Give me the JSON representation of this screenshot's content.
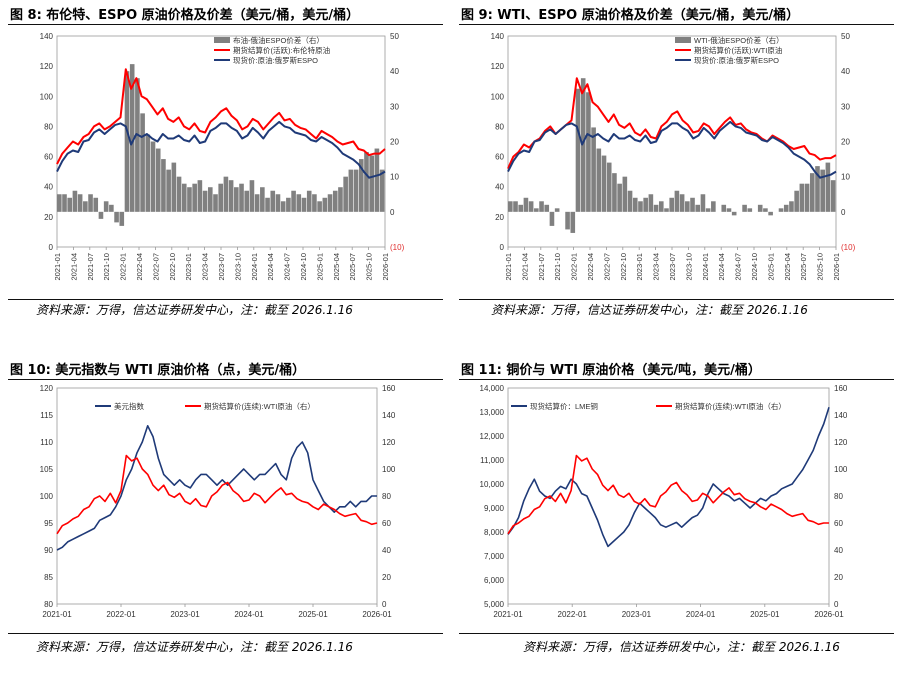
{
  "panels": [
    {
      "title": "图 8:  布伦特、ESPO 原油价格及价差（美元/桶，美元/桶）",
      "source": "资料来源：万得，信达证券研发中心，注：截至 2026.1.16"
    },
    {
      "title": "图 9:  WTI、ESPO 原油价格及价差（美元/桶，美元/桶）",
      "source": "资料来源：万得，信达证券研发中心，注：截至 2026.1.16"
    },
    {
      "title": "图 10:  美元指数与 WTI 原油价格（点，美元/桶）",
      "source": "资料来源：万得，信达证券研发中心，注：截至 2026.1.16"
    },
    {
      "title": "图 11:  铜价与 WTI 原油价格（美元/吨，美元/桶）",
      "source": "资料来源：万得，信达证券研发中心，注：截至 2026.1.16"
    }
  ],
  "colors": {
    "red": "#ff0000",
    "navy": "#1f3a78",
    "gray": "#808080"
  },
  "chart_data": [
    {
      "type": "line",
      "left_axis": {
        "ticks": [
          "0",
          "20",
          "40",
          "60",
          "80",
          "100",
          "120",
          "140"
        ],
        "ylim": [
          0,
          140
        ]
      },
      "right_axis": {
        "ticks": [
          "(10)",
          "0",
          "10",
          "20",
          "30",
          "40",
          "50"
        ],
        "ylim": [
          -10,
          50
        ]
      },
      "x_ticks": [
        "2021-01",
        "2021-04",
        "2021-07",
        "2021-10",
        "2022-01",
        "2022-04",
        "2022-07",
        "2022-10",
        "2023-01",
        "2023-04",
        "2023-07",
        "2023-10",
        "2024-01",
        "2024-04",
        "2024-07",
        "2024-10",
        "2025-01",
        "2025-04",
        "2025-07",
        "2025-10",
        "2026-01"
      ],
      "legend_placement": "top-right",
      "series": [
        {
          "name": "布油-俄油ESPO价差（右）",
          "kind": "bar",
          "axis": "right",
          "values": [
            5,
            5,
            4,
            6,
            5,
            3,
            5,
            4,
            -2,
            3,
            2,
            -3,
            -4,
            40,
            42,
            38,
            28,
            22,
            20,
            18,
            15,
            12,
            14,
            10,
            8,
            7,
            8,
            9,
            6,
            7,
            5,
            8,
            10,
            9,
            7,
            8,
            6,
            9,
            5,
            7,
            4,
            6,
            5,
            3,
            4,
            6,
            5,
            4,
            6,
            5,
            3,
            4,
            5,
            6,
            7,
            10,
            12,
            12,
            15,
            17,
            16,
            18,
            12
          ]
        },
        {
          "name": "期货结算价(活跃):布伦特原油",
          "kind": "line",
          "axis": "left",
          "values": [
            55,
            62,
            66,
            70,
            68,
            73,
            75,
            80,
            82,
            78,
            80,
            83,
            86,
            118,
            105,
            112,
            100,
            98,
            93,
            88,
            92,
            85,
            83,
            86,
            80,
            78,
            82,
            77,
            76,
            83,
            86,
            90,
            92,
            87,
            84,
            78,
            80,
            85,
            83,
            78,
            82,
            86,
            89,
            84,
            85,
            81,
            79,
            78,
            75,
            72,
            77,
            75,
            73,
            70,
            68,
            69,
            70,
            65,
            64,
            61,
            62,
            62,
            65
          ]
        },
        {
          "name": "现货价:原油:俄罗斯ESPO",
          "kind": "line",
          "axis": "left",
          "values": [
            50,
            57,
            62,
            64,
            63,
            70,
            71,
            76,
            78,
            75,
            78,
            81,
            82,
            80,
            68,
            75,
            73,
            75,
            72,
            70,
            75,
            72,
            72,
            74,
            71,
            70,
            74,
            69,
            70,
            77,
            79,
            82,
            82,
            79,
            77,
            72,
            74,
            79,
            76,
            72,
            77,
            80,
            83,
            80,
            79,
            76,
            75,
            74,
            71,
            70,
            73,
            71,
            69,
            66,
            62,
            60,
            58,
            55,
            50,
            46,
            47,
            48,
            50
          ]
        }
      ]
    },
    {
      "type": "line",
      "left_axis": {
        "ticks": [
          "0",
          "20",
          "40",
          "60",
          "80",
          "100",
          "120",
          "140"
        ],
        "ylim": [
          0,
          140
        ]
      },
      "right_axis": {
        "ticks": [
          "(10)",
          "0",
          "10",
          "20",
          "30",
          "40",
          "50"
        ],
        "ylim": [
          -10,
          50
        ]
      },
      "x_ticks": [
        "2021-01",
        "2021-04",
        "2021-07",
        "2021-10",
        "2022-01",
        "2022-04",
        "2022-07",
        "2022-10",
        "2023-01",
        "2023-04",
        "2023-07",
        "2023-10",
        "2024-01",
        "2024-04",
        "2024-07",
        "2024-10",
        "2025-01",
        "2025-04",
        "2025-07",
        "2025-10",
        "2026-01"
      ],
      "legend_placement": "top-right",
      "series": [
        {
          "name": "WTI-俄油ESPO价差（右）",
          "kind": "bar",
          "axis": "right",
          "values": [
            3,
            3,
            2,
            4,
            3,
            1,
            3,
            2,
            -4,
            1,
            0,
            -5,
            -6,
            35,
            38,
            34,
            24,
            18,
            16,
            14,
            11,
            8,
            10,
            6,
            4,
            3,
            4,
            5,
            2,
            3,
            1,
            4,
            6,
            5,
            3,
            4,
            2,
            5,
            1,
            3,
            0,
            2,
            1,
            -1,
            0,
            2,
            1,
            0,
            2,
            1,
            -1,
            0,
            1,
            2,
            3,
            6,
            8,
            8,
            11,
            13,
            12,
            14,
            9
          ]
        },
        {
          "name": "期货结算价(活跃):WTI原油",
          "kind": "line",
          "axis": "left",
          "values": [
            52,
            60,
            63,
            68,
            66,
            70,
            72,
            77,
            80,
            75,
            78,
            81,
            84,
            112,
            102,
            108,
            96,
            93,
            88,
            83,
            88,
            81,
            79,
            82,
            76,
            74,
            78,
            73,
            72,
            80,
            83,
            88,
            90,
            84,
            81,
            76,
            77,
            82,
            80,
            75,
            79,
            83,
            86,
            81,
            82,
            78,
            76,
            75,
            72,
            70,
            74,
            72,
            70,
            67,
            65,
            66,
            67,
            62,
            61,
            58,
            59,
            59,
            61
          ]
        },
        {
          "name": "现货价:原油:俄罗斯ESPO",
          "kind": "line",
          "axis": "left",
          "values": [
            50,
            57,
            62,
            64,
            63,
            70,
            71,
            76,
            78,
            75,
            78,
            81,
            82,
            80,
            68,
            75,
            73,
            75,
            72,
            70,
            75,
            72,
            72,
            74,
            71,
            70,
            74,
            69,
            70,
            77,
            79,
            82,
            82,
            79,
            77,
            72,
            74,
            79,
            76,
            72,
            77,
            80,
            83,
            80,
            79,
            76,
            75,
            74,
            71,
            70,
            73,
            71,
            69,
            66,
            62,
            60,
            58,
            55,
            50,
            46,
            47,
            48,
            50
          ]
        }
      ]
    },
    {
      "type": "line",
      "left_axis": {
        "ticks": [
          "80",
          "85",
          "90",
          "95",
          "100",
          "105",
          "110",
          "115",
          "120"
        ],
        "ylim": [
          80,
          120
        ]
      },
      "right_axis": {
        "ticks": [
          "0",
          "20",
          "40",
          "60",
          "80",
          "100",
          "120",
          "140",
          "160"
        ],
        "ylim": [
          0,
          160
        ]
      },
      "x_ticks": [
        "2021-01",
        "2022-01",
        "2023-01",
        "2024-01",
        "2025-01",
        "2026-01"
      ],
      "legend_placement": "top",
      "series": [
        {
          "name": "美元指数",
          "axis": "left",
          "values": [
            90,
            90.5,
            91.5,
            92,
            92.5,
            93,
            93.5,
            94,
            95.5,
            96,
            96.5,
            98,
            100,
            103,
            105,
            108,
            110,
            113,
            111,
            107,
            104,
            103,
            102,
            103,
            102,
            101.5,
            103,
            104,
            104,
            103,
            102,
            103,
            102,
            103,
            104,
            105,
            104,
            103,
            104,
            104,
            105,
            106,
            104,
            103,
            107,
            109,
            110,
            108,
            103,
            101,
            99,
            98,
            97,
            98,
            98,
            99,
            98,
            99,
            99,
            100,
            100
          ]
        },
        {
          "name": "期货结算价(连续):WTI原油（右）",
          "axis": "right",
          "values": [
            52,
            58,
            60,
            63,
            65,
            70,
            72,
            78,
            80,
            76,
            82,
            75,
            84,
            110,
            106,
            108,
            100,
            96,
            88,
            84,
            88,
            81,
            79,
            82,
            76,
            74,
            78,
            73,
            72,
            80,
            83,
            88,
            90,
            84,
            81,
            76,
            77,
            82,
            80,
            75,
            79,
            83,
            86,
            81,
            82,
            78,
            76,
            75,
            72,
            70,
            74,
            72,
            70,
            67,
            65,
            66,
            67,
            62,
            61,
            59,
            60
          ]
        }
      ]
    },
    {
      "type": "line",
      "left_axis": {
        "ticks": [
          "5,000",
          "6,000",
          "7,000",
          "8,000",
          "9,000",
          "10,000",
          "11,000",
          "12,000",
          "13,000",
          "14,000"
        ],
        "ylim": [
          5000,
          14000
        ]
      },
      "right_axis": {
        "ticks": [
          "0",
          "20",
          "40",
          "60",
          "80",
          "100",
          "120",
          "140",
          "160"
        ],
        "ylim": [
          0,
          160
        ]
      },
      "x_ticks": [
        "2021-01",
        "2022-01",
        "2023-01",
        "2024-01",
        "2025-01",
        "2026-01"
      ],
      "legend_placement": "top",
      "series": [
        {
          "name": "现货结算价：LME铜",
          "axis": "left",
          "values": [
            7900,
            8200,
            8600,
            9300,
            9800,
            10200,
            9700,
            9500,
            9400,
            9700,
            9900,
            9800,
            10200,
            10000,
            9600,
            9500,
            9000,
            8500,
            7900,
            7400,
            7600,
            7800,
            8000,
            8300,
            8800,
            9200,
            9000,
            8800,
            8600,
            8300,
            8200,
            8300,
            8400,
            8200,
            8400,
            8600,
            8700,
            9000,
            9600,
            10000,
            9800,
            9600,
            9500,
            9300,
            9400,
            9200,
            9000,
            9200,
            9400,
            9300,
            9500,
            9600,
            9800,
            9900,
            10000,
            10300,
            10600,
            11000,
            11400,
            12000,
            12500,
            13200
          ]
        },
        {
          "name": "期货结算价(连续):WTI原油（右）",
          "axis": "right",
          "values": [
            52,
            58,
            60,
            63,
            65,
            70,
            72,
            78,
            80,
            76,
            82,
            75,
            84,
            110,
            106,
            108,
            100,
            96,
            88,
            84,
            88,
            81,
            79,
            82,
            76,
            74,
            78,
            73,
            72,
            80,
            83,
            88,
            90,
            84,
            81,
            76,
            77,
            82,
            80,
            75,
            79,
            83,
            86,
            81,
            82,
            78,
            76,
            75,
            72,
            70,
            74,
            72,
            70,
            67,
            65,
            66,
            67,
            62,
            61,
            59,
            60,
            60
          ]
        }
      ]
    }
  ]
}
